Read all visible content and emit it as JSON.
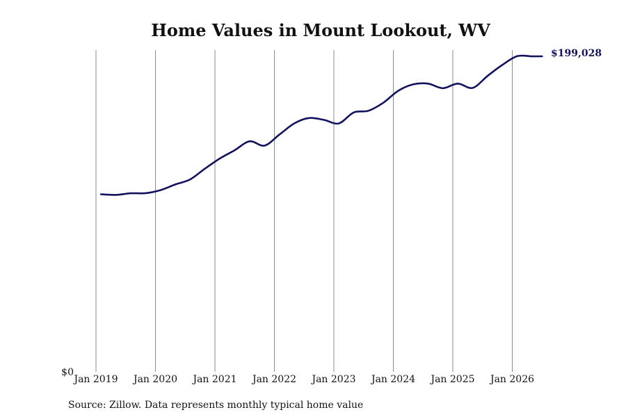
{
  "colors": {
    "line": "#12125e",
    "grid": "#8a8a8a",
    "text": "#111111"
  },
  "source": "Source: Zillow. Data represents monthly typical home value",
  "chart_data": {
    "type": "line",
    "title": "Home Values in Mount Lookout, WV",
    "xlabel": "",
    "ylabel": "",
    "y_min_label": "$0",
    "end_label": "$199,028",
    "ylim": [
      0,
      210000
    ],
    "xlim": [
      "2019-01",
      "2026-08"
    ],
    "grid": {
      "vertical": true,
      "horizontal": false
    },
    "x_ticks": [
      "2019-01",
      "2020-01",
      "2021-01",
      "2022-01",
      "2023-01",
      "2024-01",
      "2025-01",
      "2026-01"
    ],
    "x_tick_labels": [
      "Jan 2019",
      "Jan 2020",
      "Jan 2021",
      "Jan 2022",
      "Jan 2023",
      "Jan 2024",
      "Jan 2025",
      "Jan 2026"
    ],
    "series": [
      {
        "x": [
          "2019-02",
          "2019-05",
          "2019-08",
          "2019-11",
          "2020-02",
          "2020-05",
          "2020-08",
          "2020-11",
          "2021-02",
          "2021-05",
          "2021-08",
          "2021-11",
          "2022-02",
          "2022-05",
          "2022-08",
          "2022-11",
          "2023-02",
          "2023-05",
          "2023-08",
          "2023-11",
          "2024-02",
          "2024-05",
          "2024-08",
          "2024-11",
          "2025-02",
          "2025-05",
          "2025-08",
          "2025-11",
          "2026-02",
          "2026-05",
          "2026-07"
        ],
        "values": [
          112000,
          111600,
          112600,
          112700,
          114600,
          118200,
          121400,
          128200,
          134600,
          139800,
          145400,
          142700,
          149600,
          156700,
          160100,
          158900,
          156700,
          163600,
          164700,
          169800,
          177300,
          181300,
          181800,
          178900,
          181800,
          179100,
          186600,
          193600,
          199100,
          199000,
          199028
        ]
      }
    ]
  }
}
